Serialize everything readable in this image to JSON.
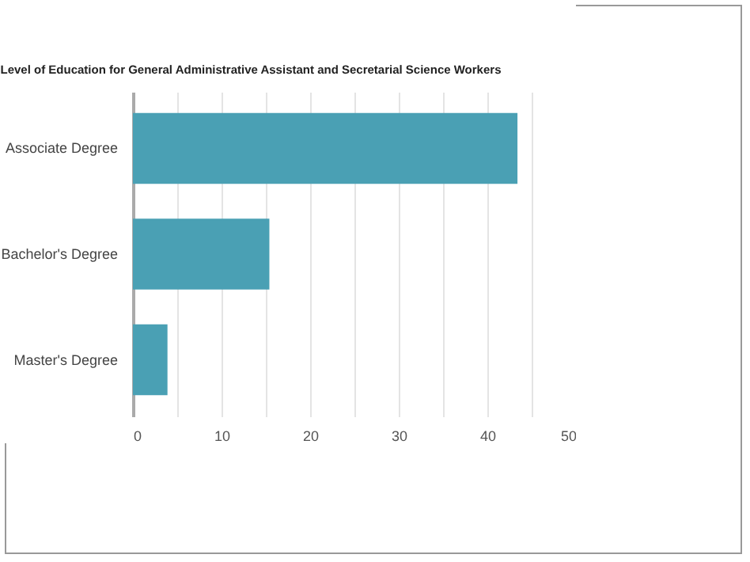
{
  "chart_data": {
    "type": "bar",
    "orientation": "horizontal",
    "title": "Level of Education for General Administrative Assistant and Secretarial Science Workers",
    "categories": [
      "Associate Degree",
      "Bachelor's Degree",
      "Master's Degree"
    ],
    "values": [
      43.4,
      15.4,
      3.9
    ],
    "color": "#4aa0b4",
    "xlim": [
      0,
      50
    ],
    "xticks": [
      0,
      {
        "value": 5,
        "label": null
      },
      10,
      {
        "value": 15,
        "label": null
      },
      20,
      {
        "value": 25,
        "label": null
      },
      30,
      {
        "value": 35,
        "label": null
      },
      40,
      {
        "value": 45,
        "label": null
      },
      50
    ],
    "grid": "x"
  }
}
